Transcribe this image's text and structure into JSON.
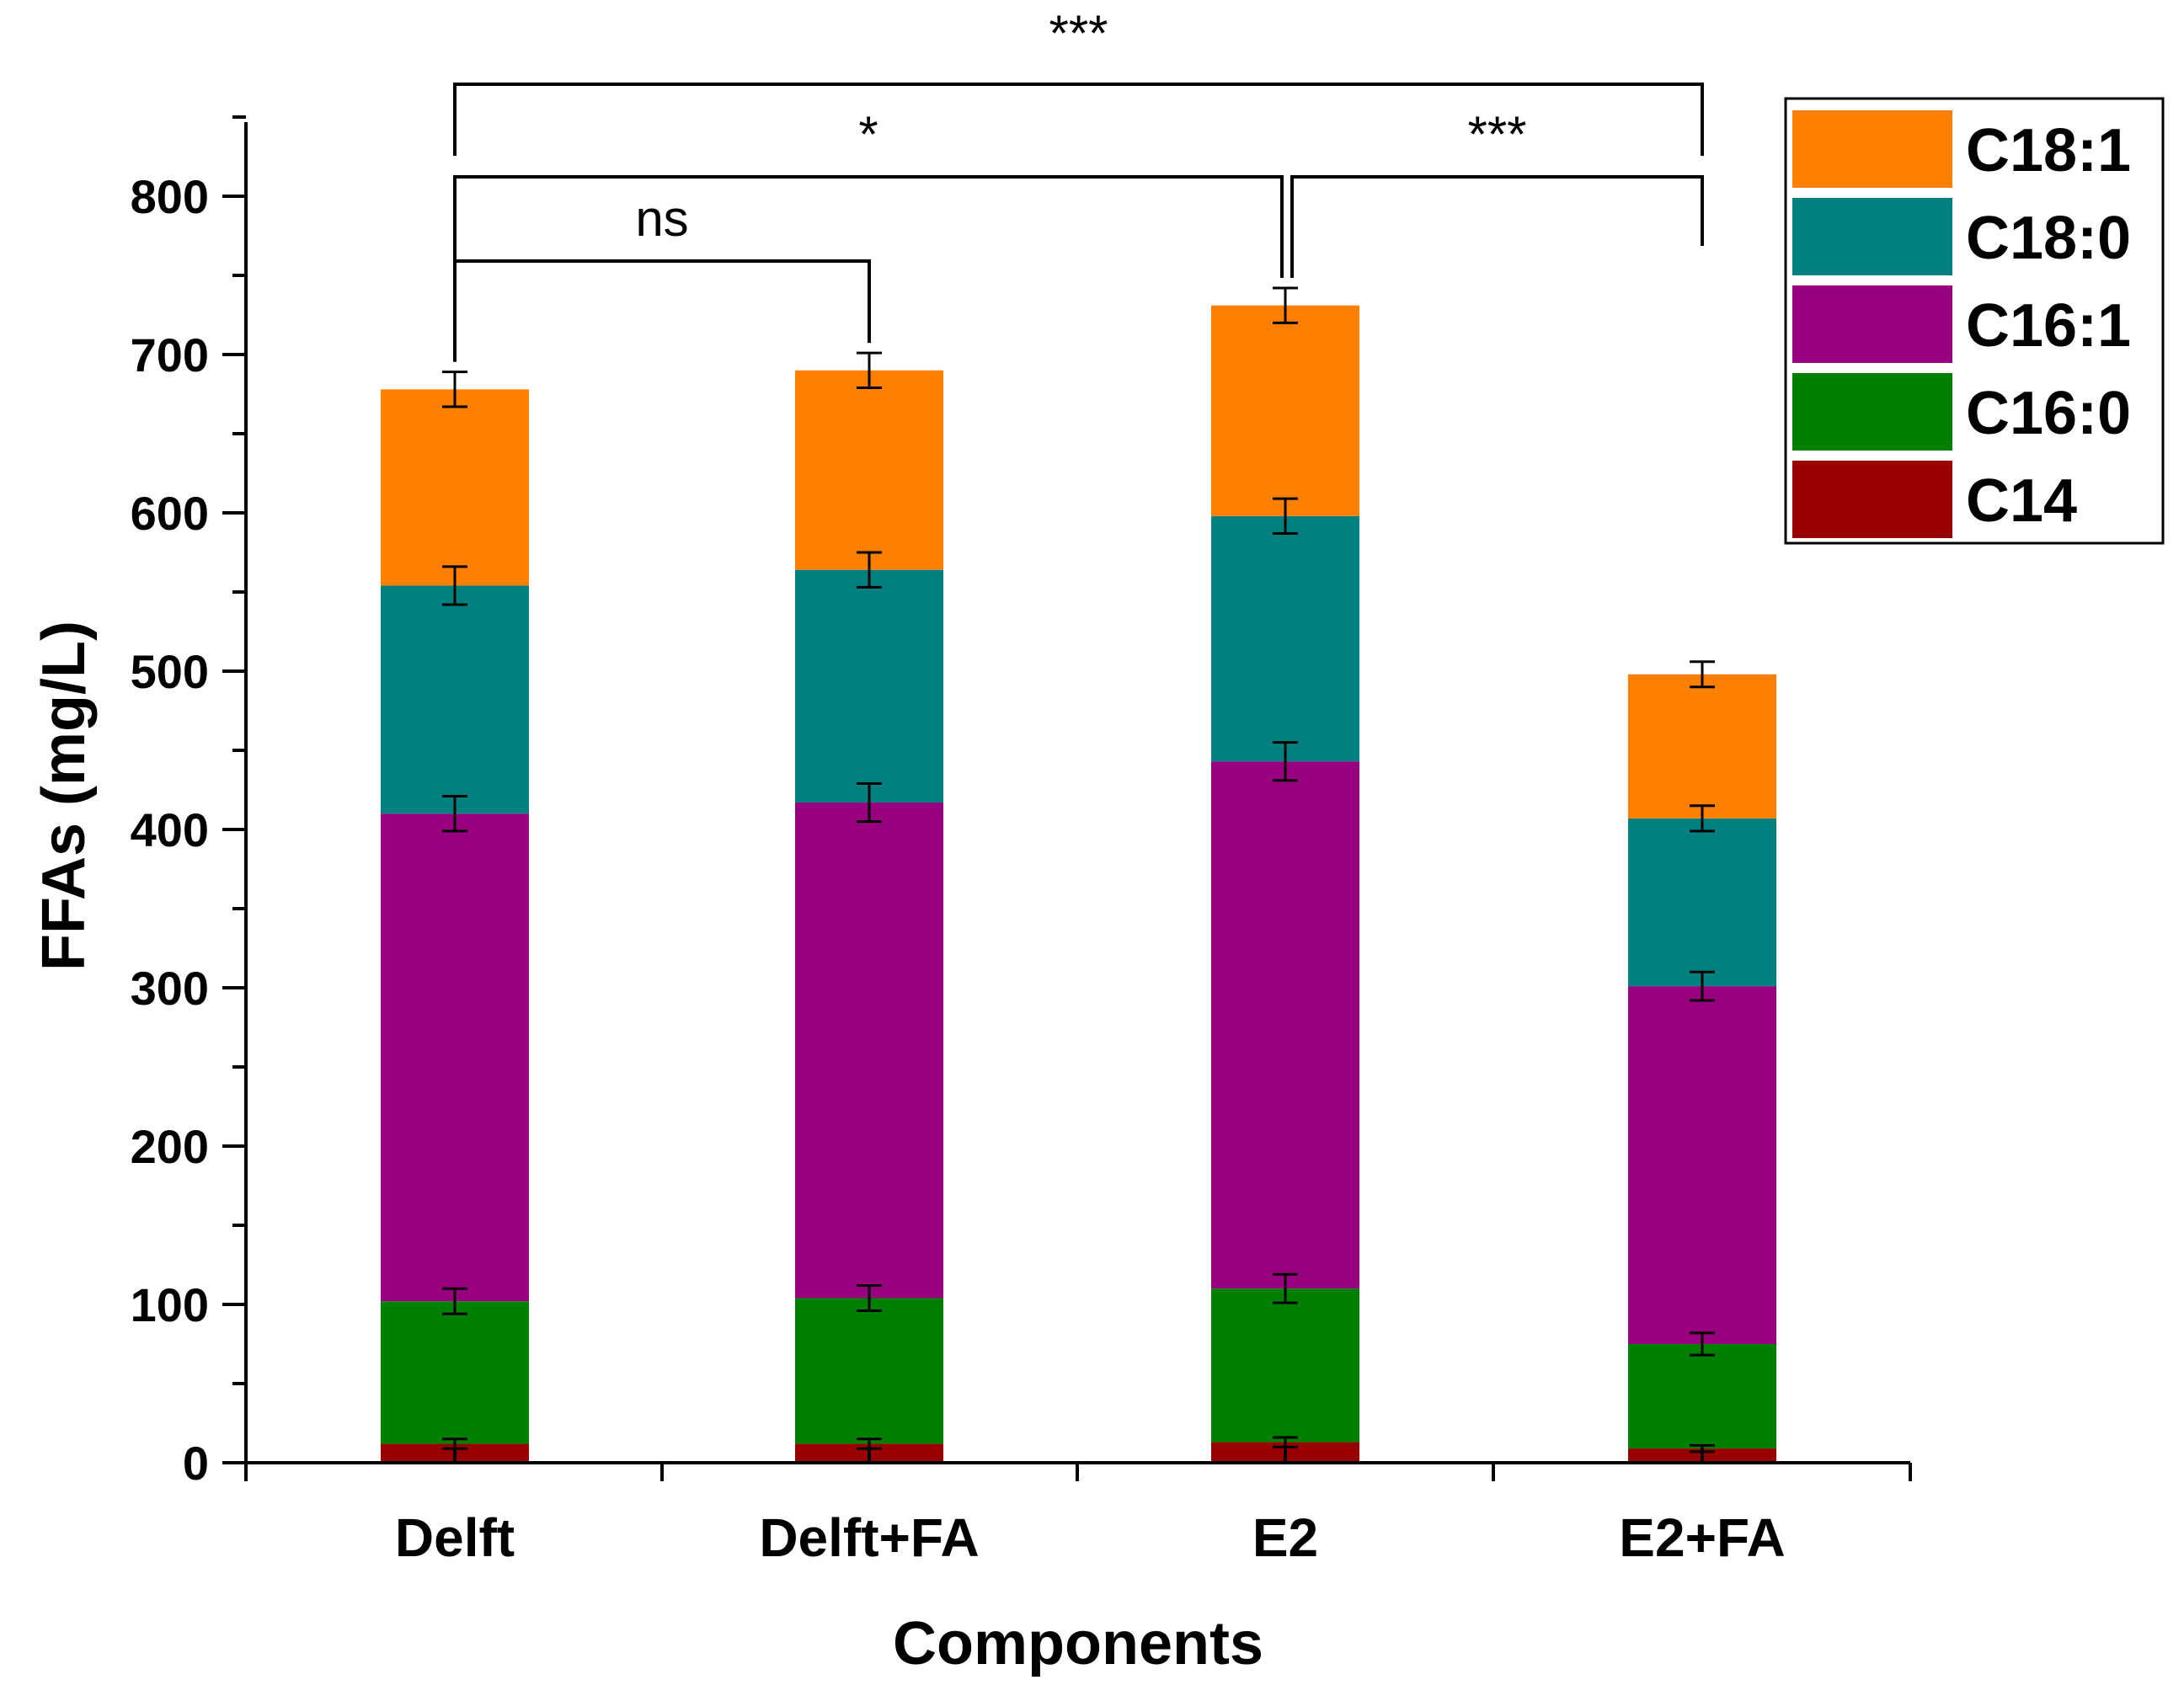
{
  "chart_data": {
    "type": "bar",
    "stacked": true,
    "title": "",
    "xlabel": "Components",
    "ylabel": "FFAs (mg/L)",
    "ylim": [
      0,
      850
    ],
    "yticks": [
      0,
      100,
      200,
      300,
      400,
      500,
      600,
      700,
      800
    ],
    "yminor_step": 50,
    "categories": [
      "Delft",
      "Delft+FA",
      "E2",
      "E2+FA"
    ],
    "series": [
      {
        "name": "C14",
        "color": "#990000",
        "values": [
          12,
          12,
          13,
          9
        ],
        "errors": [
          3,
          3,
          3,
          2
        ]
      },
      {
        "name": "C16:0",
        "color": "#008000",
        "values": [
          90,
          92,
          97,
          66
        ],
        "errors": [
          8,
          8,
          9,
          7
        ]
      },
      {
        "name": "C16:1",
        "color": "#990080",
        "values": [
          308,
          313,
          333,
          226
        ],
        "errors": [
          11,
          12,
          12,
          9
        ]
      },
      {
        "name": "C18:0",
        "color": "#008080",
        "values": [
          144,
          147,
          155,
          106
        ],
        "errors": [
          12,
          11,
          11,
          8
        ]
      },
      {
        "name": "C18:1",
        "color": "#FF8000",
        "values": [
          124,
          126,
          133,
          91
        ],
        "errors": [
          11,
          11,
          11,
          8
        ]
      }
    ],
    "legend": {
      "position": "top-right",
      "order": [
        "C18:1",
        "C18:0",
        "C16:1",
        "C16:0",
        "C14"
      ]
    },
    "significance": [
      {
        "from": "Delft",
        "to": "Delft+FA",
        "label": "ns"
      },
      {
        "from": "Delft",
        "to": "E2",
        "label": "*"
      },
      {
        "from": "E2",
        "to": "E2+FA",
        "label": "***"
      },
      {
        "from": "Delft",
        "to": "E2+FA",
        "label": "***"
      }
    ]
  }
}
